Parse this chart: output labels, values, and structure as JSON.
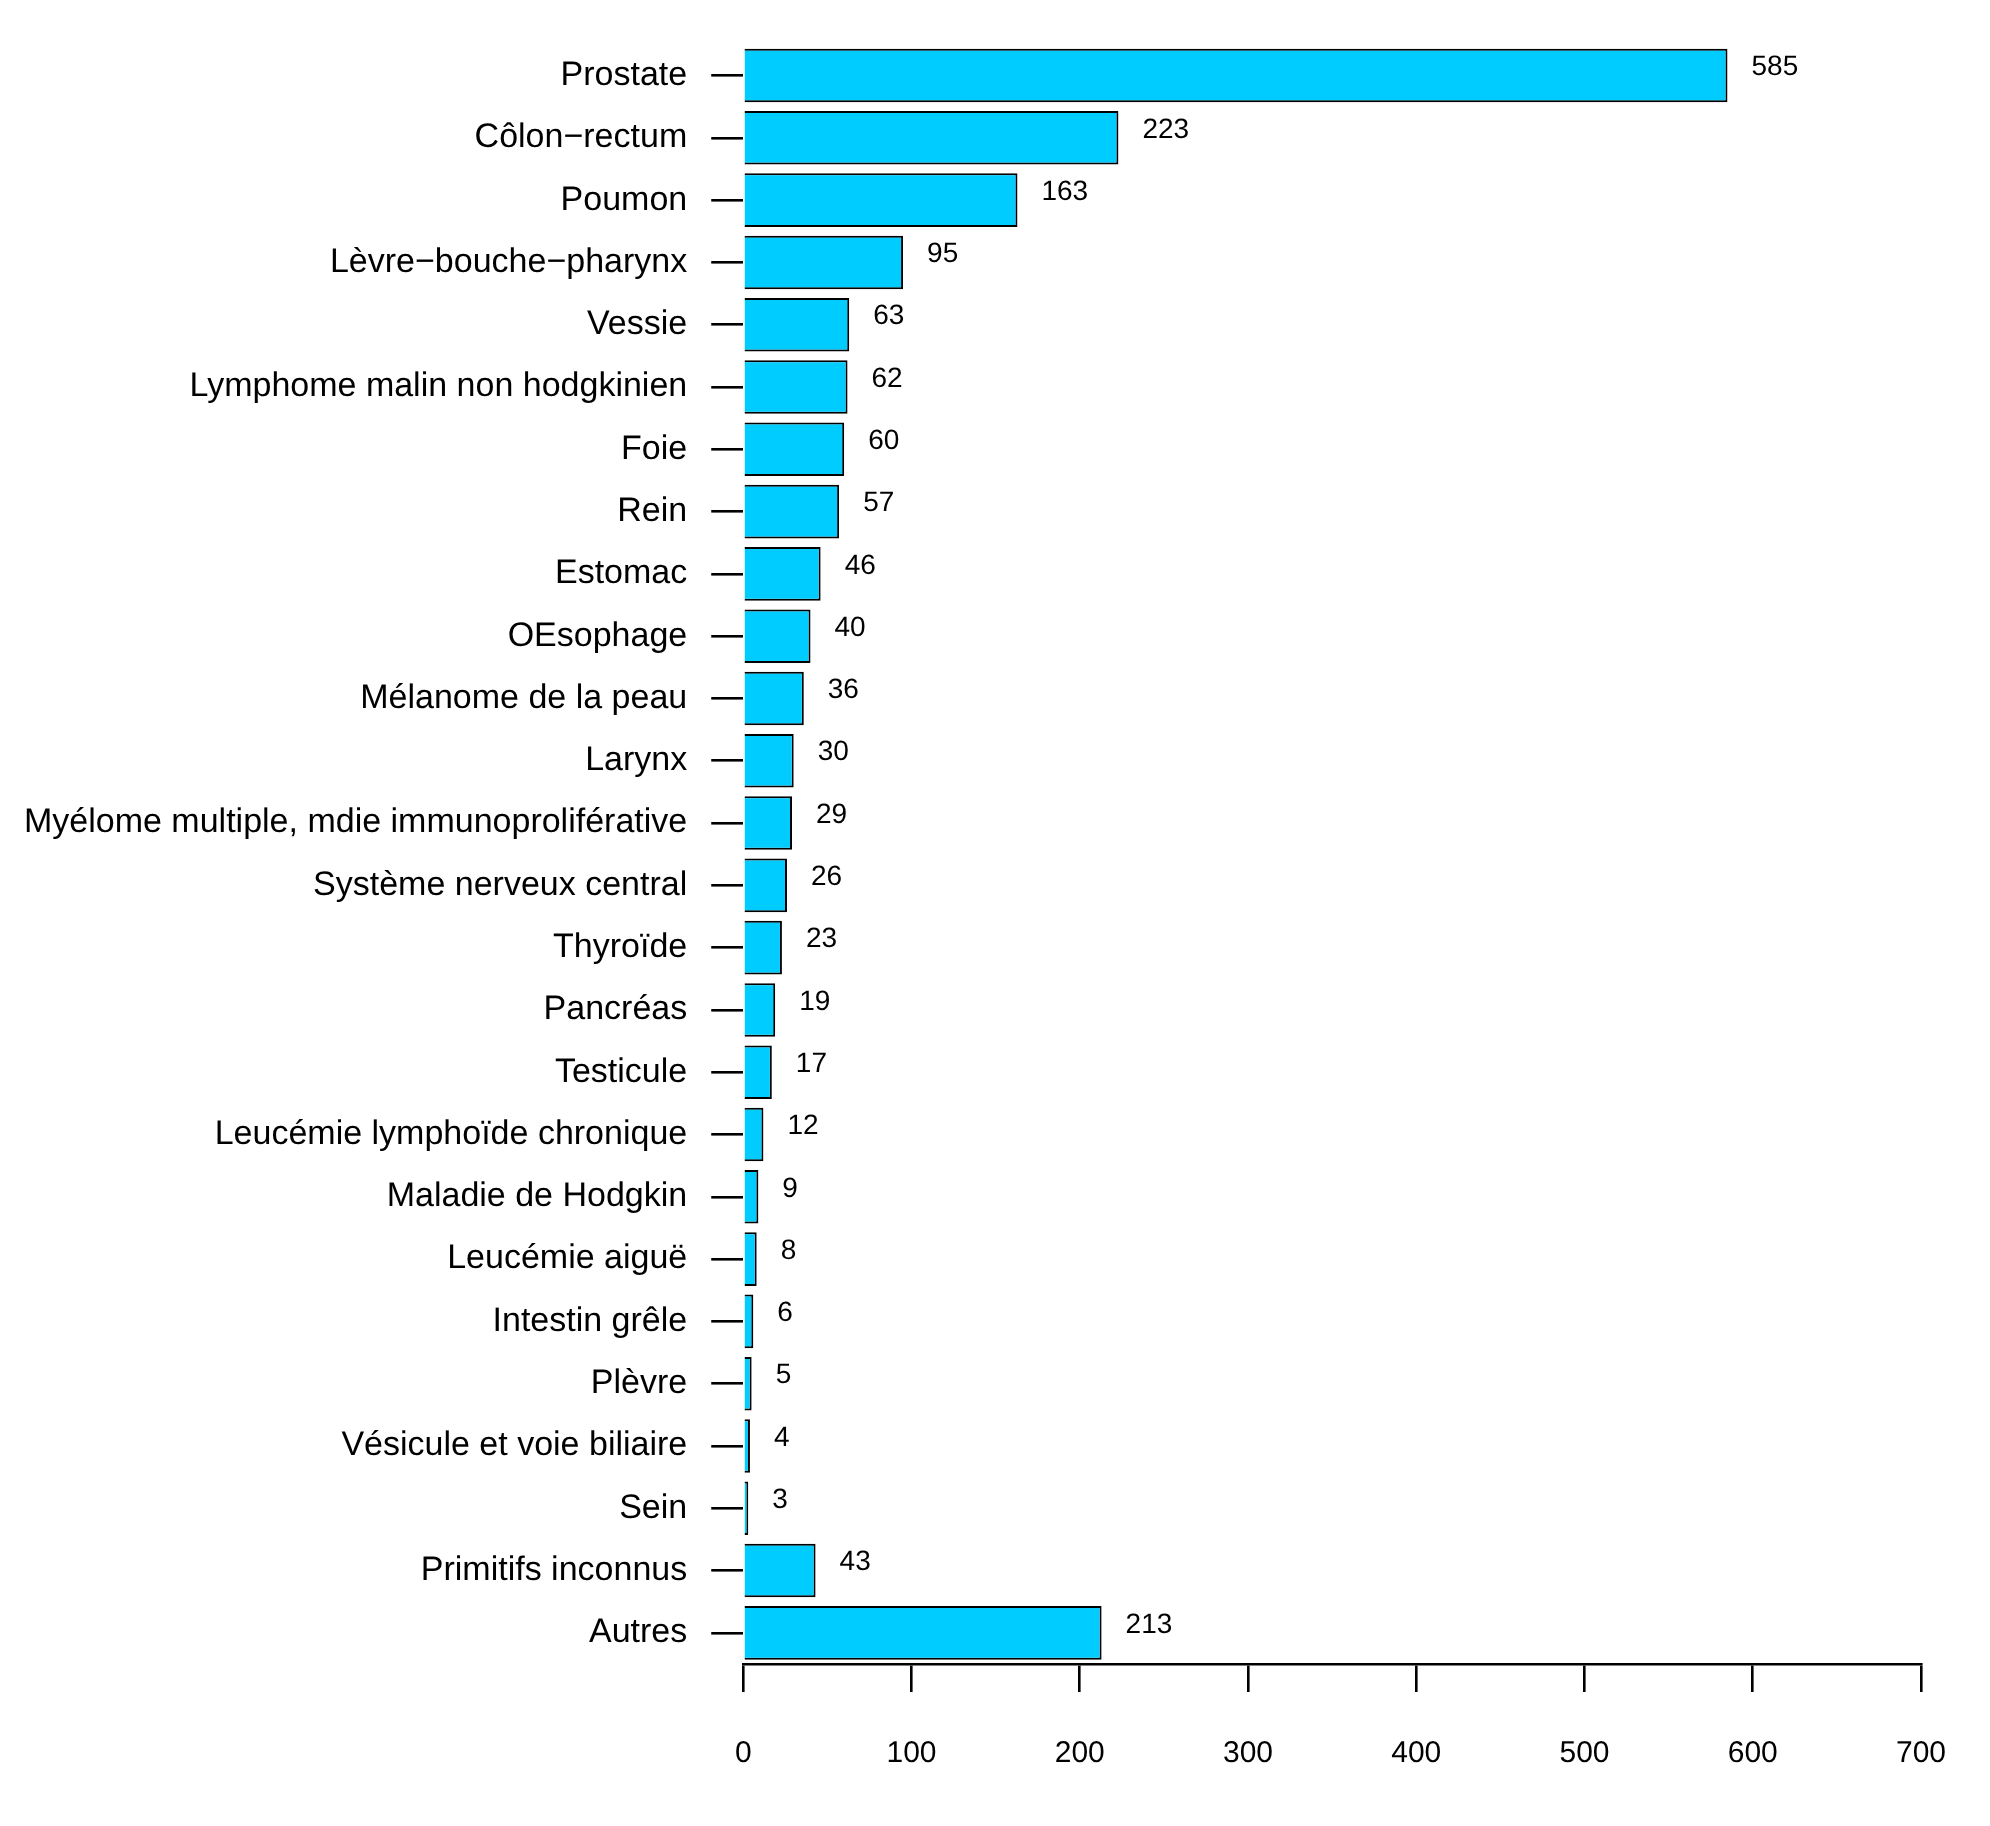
{
  "chart_data": {
    "type": "bar",
    "orientation": "horizontal",
    "categories": [
      "Prostate",
      "Côlon−rectum",
      "Poumon",
      "Lèvre−bouche−pharynx",
      "Vessie",
      "Lymphome malin non hodgkinien",
      "Foie",
      "Rein",
      "Estomac",
      "OEsophage",
      "Mélanome de la peau",
      "Larynx",
      "Myélome multiple, mdie immunoproliférative",
      "Système nerveux central",
      "Thyroïde",
      "Pancréas",
      "Testicule",
      "Leucémie lymphoïde chronique",
      "Maladie de Hodgkin",
      "Leucémie aiguë",
      "Intestin grêle",
      "Plèvre",
      "Vésicule et voie biliaire",
      "Sein",
      "Primitifs inconnus",
      "Autres"
    ],
    "values": [
      585,
      223,
      163,
      95,
      63,
      62,
      60,
      57,
      46,
      40,
      36,
      30,
      29,
      26,
      23,
      19,
      17,
      12,
      9,
      8,
      6,
      5,
      4,
      3,
      43,
      213
    ],
    "color": "#00ccff",
    "xlim": [
      0,
      700
    ],
    "xticks": [
      0,
      100,
      200,
      300,
      400,
      500,
      600,
      700
    ],
    "grid": false,
    "legend": false,
    "data_labels": true
  }
}
